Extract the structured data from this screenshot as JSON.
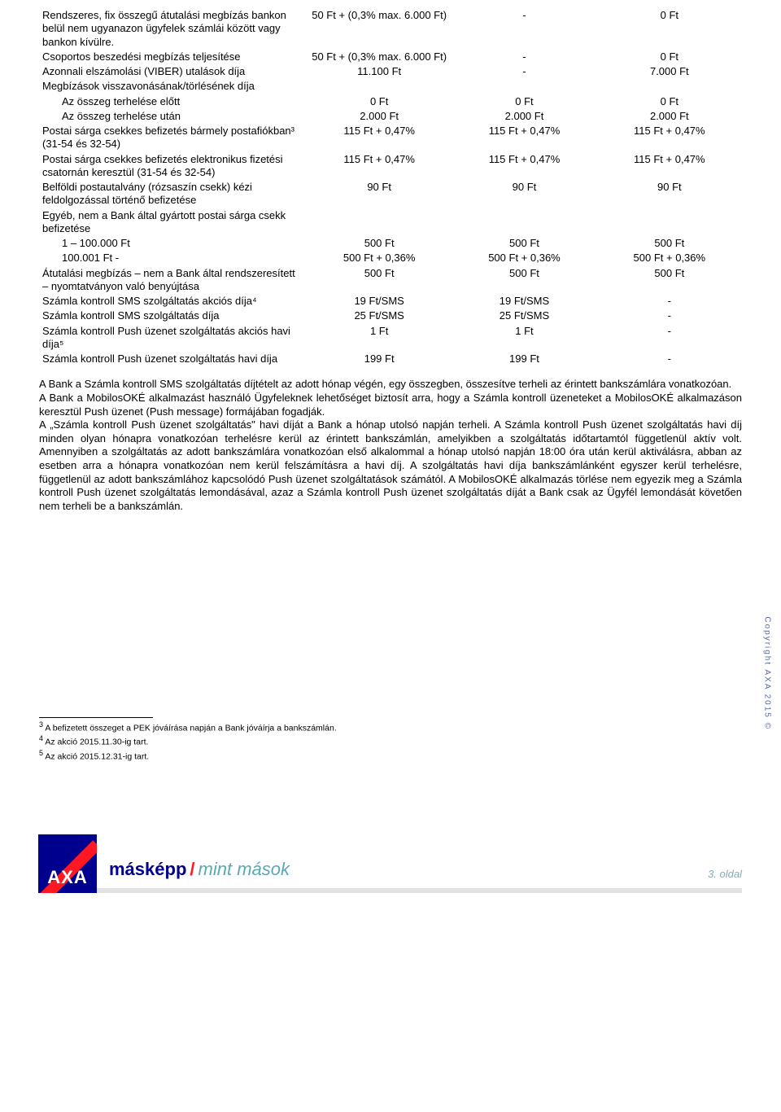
{
  "table": {
    "rows": [
      {
        "desc": "Rendszeres, fix összegű átutalási megbízás bankon belül nem ugyanazon ügyfelek számlái között vagy bankon kívülre.",
        "c1": "50 Ft + (0,3% max. 6.000 Ft)",
        "c2": "-",
        "c3": "0 Ft"
      },
      {
        "desc": "Csoportos beszedési megbízás teljesítése",
        "c1": "50 Ft + (0,3% max. 6.000 Ft)",
        "c2": "-",
        "c3": "0 Ft"
      },
      {
        "desc": "Azonnali elszámolási (VIBER) utalások díja",
        "c1": "11.100 Ft",
        "c2": "-",
        "c3": "7.000 Ft"
      },
      {
        "desc": "Megbízások visszavonásának/törlésének díja",
        "c1": "",
        "c2": "",
        "c3": ""
      },
      {
        "desc": "Az összeg terhelése előtt",
        "indent": true,
        "c1": "0 Ft",
        "c2": "0 Ft",
        "c3": "0 Ft"
      },
      {
        "desc": "Az összeg terhelése után",
        "indent": true,
        "c1": "2.000 Ft",
        "c2": "2.000 Ft",
        "c3": "2.000 Ft"
      },
      {
        "desc": "Postai sárga csekkes befizetés bármely postafiókban³ (31-54 és 32-54)",
        "c1": "115 Ft + 0,47%",
        "c2": "115 Ft + 0,47%",
        "c3": "115 Ft + 0,47%"
      },
      {
        "desc": "Postai sárga csekkes befizetés elektronikus fizetési csatornán keresztül (31-54 és 32-54)",
        "c1": "115 Ft + 0,47%",
        "c2": "115 Ft + 0,47%",
        "c3": "115 Ft + 0,47%"
      },
      {
        "desc": "Belföldi postautalvány (rózsaszín csekk) kézi feldolgozással történő befizetése",
        "c1": "90 Ft",
        "c2": "90 Ft",
        "c3": "90 Ft"
      },
      {
        "desc": "Egyéb, nem a Bank által gyártott postai sárga csekk befizetése",
        "c1": "",
        "c2": "",
        "c3": ""
      },
      {
        "desc": "1 – 100.000 Ft",
        "indent": true,
        "c1": "500 Ft",
        "c2": "500 Ft",
        "c3": "500 Ft"
      },
      {
        "desc": "100.001 Ft -",
        "indent": true,
        "c1": "500 Ft + 0,36%",
        "c2": "500 Ft + 0,36%",
        "c3": "500 Ft + 0,36%"
      },
      {
        "desc": "Átutalási megbízás – nem a Bank által rendszeresített – nyomtatványon való benyújtása",
        "c1": "500 Ft",
        "c2": "500 Ft",
        "c3": "500 Ft"
      },
      {
        "desc": "Számla kontroll SMS szolgáltatás akciós díja⁴",
        "c1": "19 Ft/SMS",
        "c2": "19 Ft/SMS",
        "c3": "-"
      },
      {
        "desc": "Számla kontroll SMS szolgáltatás díja",
        "c1": "25 Ft/SMS",
        "c2": "25 Ft/SMS",
        "c3": "-"
      },
      {
        "desc": "Számla kontroll Push üzenet szolgáltatás akciós havi díja⁵",
        "c1": "1 Ft",
        "c2": "1 Ft",
        "c3": "-"
      },
      {
        "desc": "Számla kontroll Push üzenet szolgáltatás havi díja",
        "c1": "199 Ft",
        "c2": "199 Ft",
        "c3": "-"
      }
    ]
  },
  "paragraphs": [
    "A Bank a Számla kontroll SMS szolgáltatás díjtételt az adott hónap végén, egy összegben, összesítve terheli az érintett bankszámlára vonatkozóan.",
    "A Bank a MobilosOKÉ alkalmazást használó Ügyfeleknek lehetőséget biztosít arra, hogy a Számla kontroll üzeneteket a MobilosOKÉ alkalmazáson keresztül Push üzenet (Push message) formájában fogadják.",
    "A „Számla kontroll Push üzenet szolgáltatás\" havi díját a Bank a hónap utolsó napján terheli. A Számla kontroll Push üzenet szolgáltatás havi díj minden olyan hónapra vonatkozóan terhelésre kerül az érintett bankszámlán, amelyikben a szolgáltatás időtartamtól függetlenül aktív volt. Amennyiben a szolgáltatás az adott bankszámlára vonatkozóan első alkalommal a hónap utolsó napján 18:00 óra után kerül aktiválásra, abban az esetben arra a hónapra vonatkozóan nem kerül felszámításra a havi díj. A szolgáltatás havi díja bankszámlánként egyszer kerül terhelésre, függetlenül az adott bankszámlához kapcsolódó Push üzenet szolgáltatások számától. A MobilosOKÉ alkalmazás törlése nem egyezik meg a Számla kontroll Push üzenet szolgáltatás lemondásával, azaz a Számla kontroll Push üzenet szolgáltatás díját a Bank csak az Ügyfél lemondását követően nem terheli be a bankszámlán."
  ],
  "footnotes": [
    {
      "n": "3",
      "t": "A befizetett összeget a PEK jóváírása napján a Bank jóváírja a bankszámlán."
    },
    {
      "n": "4",
      "t": "Az akció 2015.11.30-ig tart."
    },
    {
      "n": "5",
      "t": "Az akció 2015.12.31-ig tart."
    }
  ],
  "footer": {
    "logo_text": "AXA",
    "slogan_bold": "másképp",
    "slogan_italic": "mint mások",
    "page": "3. oldal"
  },
  "copyright": "Copyright AXA 2015 ©"
}
